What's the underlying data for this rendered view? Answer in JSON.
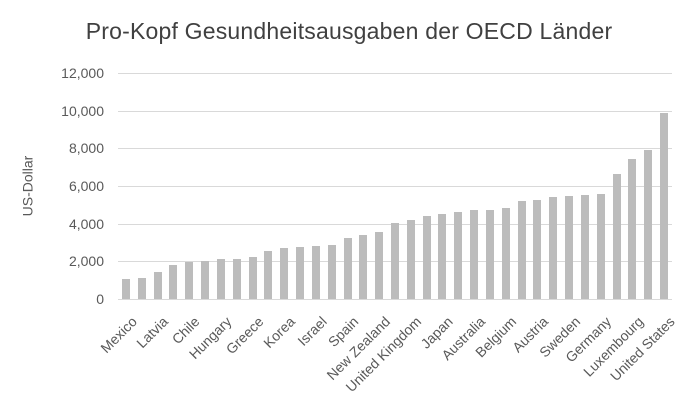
{
  "chart_data": {
    "type": "bar",
    "title": "Pro-Kopf Gesundheitsausgaben der OECD Länder",
    "ylabel": "US-Dollar",
    "xlabel": "",
    "ylim": [
      0,
      12000
    ],
    "ytick_step": 2000,
    "ytick_labels": [
      "0",
      "2,000",
      "4,000",
      "6,000",
      "8,000",
      "10,000",
      "12,000"
    ],
    "grid": "horizontal",
    "legend": "none",
    "bar_count": 35,
    "values": [
      1050,
      1100,
      1450,
      1800,
      1950,
      2000,
      2100,
      2150,
      2250,
      2550,
      2700,
      2750,
      2800,
      2850,
      3250,
      3400,
      3550,
      4050,
      4200,
      4400,
      4500,
      4600,
      4700,
      4750,
      4850,
      5200,
      5250,
      5400,
      5450,
      5500,
      5550,
      6650,
      7450,
      7900,
      9900
    ],
    "x_tick_labels": [
      "Mexico",
      "Latvia",
      "Chile",
      "Hungary",
      "Greece",
      "Korea",
      "Israel",
      "Spain",
      "New Zealand",
      "United Kingdom",
      "Japan",
      "Australia",
      "Belgium",
      "Austria",
      "Sweden",
      "Germany",
      "Luxembourg",
      "United States"
    ],
    "x_tick_label_indices": [
      0,
      2,
      4,
      6,
      8,
      10,
      12,
      14,
      16,
      18,
      20,
      22,
      24,
      26,
      28,
      30,
      32,
      34
    ],
    "colors": {
      "bar": "#bcbcbc",
      "gridline": "#d9d9d9",
      "tick_text": "#595959",
      "title_text": "#404040",
      "background": "#ffffff"
    }
  }
}
